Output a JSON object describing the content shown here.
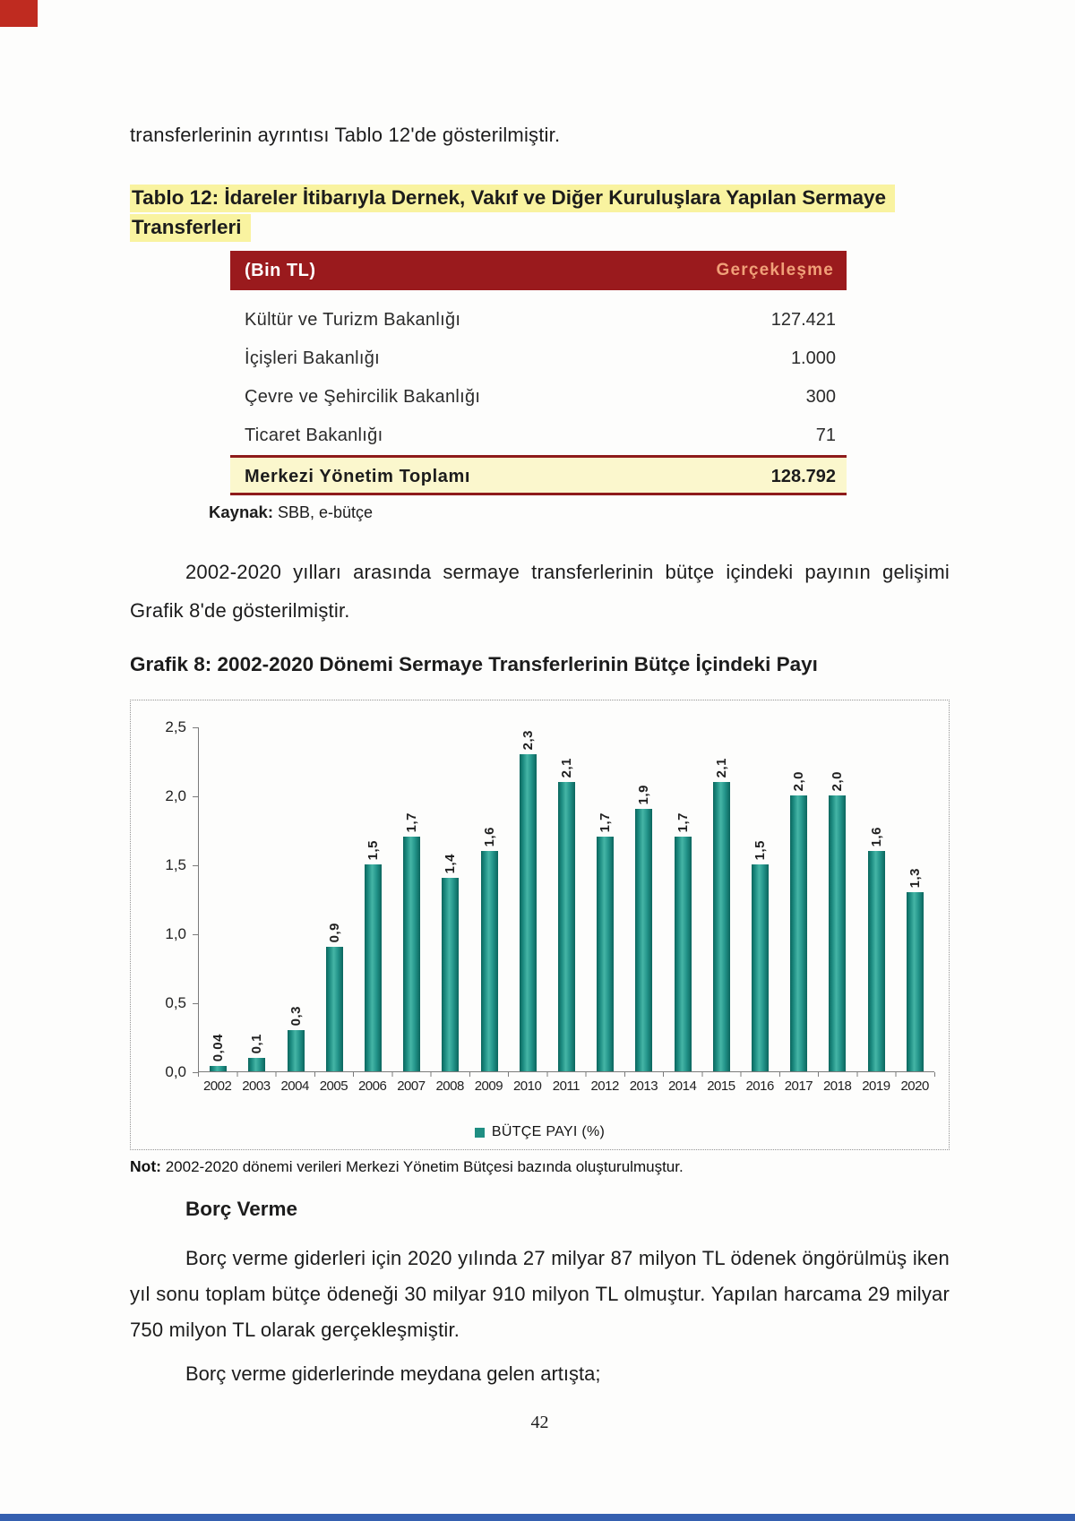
{
  "document": {
    "intro": "transferlerinin ayrıntısı Tablo 12'de gösterilmiştir.",
    "page_number": "42"
  },
  "table12": {
    "title": "Tablo 12: İdareler İtibarıyla Dernek, Vakıf ve Diğer Kuruluşlara Yapılan Sermaye Transferleri",
    "header_left": "(Bin TL)",
    "header_right": "Gerçekleşme",
    "rows": [
      {
        "label": "Kültür ve Turizm Bakanlığı",
        "value": "127.421"
      },
      {
        "label": "İçişleri Bakanlığı",
        "value": "1.000"
      },
      {
        "label": "Çevre ve Şehircilik Bakanlığı",
        "value": "300"
      },
      {
        "label": "Ticaret Bakanlığı",
        "value": "71"
      }
    ],
    "total": {
      "label": "Merkezi Yönetim Toplamı",
      "value": "128.792"
    },
    "source_label": "Kaynak:",
    "source_text": " SBB, e-bütçe"
  },
  "body": {
    "paragraph_transfers": "2002-2020 yılları arasında sermaye transferlerinin bütçe içindeki payının gelişimi Grafik 8'de gösterilmiştir.",
    "chart_heading": "Grafik 8: 2002-2020 Dönemi Sermaye Transferlerinin Bütçe İçindeki Payı",
    "note_label": "Not:",
    "note_text": " 2002-2020 dönemi verileri Merkezi Yönetim Bütçesi bazında oluşturulmuştur.",
    "loans_heading": "Borç Verme",
    "loans_paragraph_1": "Borç verme giderleri için 2020 yılında 27 milyar 87 milyon TL ödenek öngörülmüş iken yıl sonu toplam bütçe ödeneği 30 milyar 910 milyon TL olmuştur. Yapılan harcama 29 milyar 750 milyon TL olarak gerçekleşmiştir.",
    "loans_paragraph_2": "Borç verme giderlerinde meydana gelen artışta;"
  },
  "chart_data": {
    "type": "bar",
    "title": "Grafik 8: 2002-2020 Dönemi Sermaye Transferlerinin Bütçe İçindeki Payı",
    "categories": [
      "2002",
      "2003",
      "2004",
      "2005",
      "2006",
      "2007",
      "2008",
      "2009",
      "2010",
      "2011",
      "2012",
      "2013",
      "2014",
      "2015",
      "2016",
      "2017",
      "2018",
      "2019",
      "2020"
    ],
    "values": [
      0.04,
      0.1,
      0.3,
      0.9,
      1.5,
      1.7,
      1.4,
      1.6,
      2.3,
      2.1,
      1.7,
      1.9,
      1.7,
      2.1,
      1.5,
      2.0,
      2.0,
      1.6,
      1.3
    ],
    "value_labels": [
      "0,04",
      "0,1",
      "0,3",
      "0,9",
      "1,5",
      "1,7",
      "1,4",
      "1,6",
      "2,3",
      "2,1",
      "1,7",
      "1,9",
      "1,7",
      "2,1",
      "1,5",
      "2,0",
      "2,0",
      "1,6",
      "1,3"
    ],
    "legend": [
      "BÜTÇE PAYI (%)"
    ],
    "legend_position": "bottom",
    "xlabel": "",
    "ylabel": "",
    "ylim": [
      0,
      2.5
    ],
    "yticks": [
      0,
      0.5,
      1,
      1.5,
      2,
      2.5
    ],
    "ytick_labels": [
      "0,0",
      "0,5",
      "1,0",
      "1,5",
      "2,0",
      "2,5"
    ],
    "grid": false,
    "bar_color": "#1f8e82"
  },
  "colors": {
    "table_header_bg": "#9a1a1d",
    "table_header_right_text": "#f0a078",
    "highlight_yellow": "#f9f3a0",
    "total_row_bg": "#fbf7cd",
    "rule_maroon": "#8e1b1b",
    "bar_teal": "#1f8e82",
    "bottom_strip_blue": "#3560b0",
    "corner_mark_red": "#bf2b20"
  }
}
